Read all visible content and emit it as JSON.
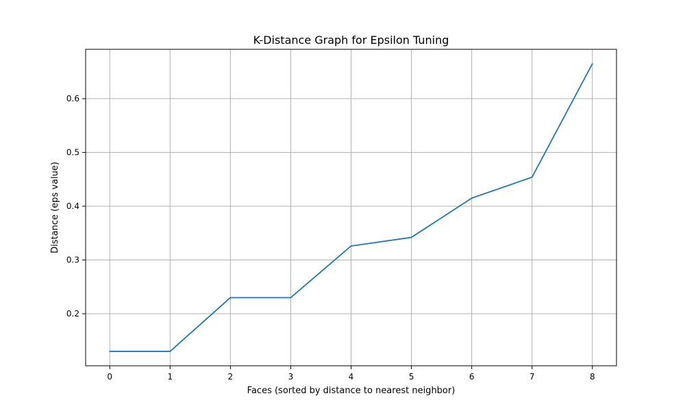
{
  "chart_data": {
    "type": "line",
    "title": "K-Distance Graph for Epsilon Tuning",
    "xlabel": "Faces (sorted by distance to nearest neighbor)",
    "ylabel": "Distance (eps value)",
    "x": [
      0,
      1,
      2,
      3,
      4,
      5,
      6,
      7,
      8
    ],
    "series": [
      {
        "values": [
          0.13,
          0.13,
          0.23,
          0.23,
          0.326,
          0.342,
          0.415,
          0.454,
          0.665
        ],
        "color": "#1f77b4"
      }
    ],
    "xticks": [
      "0",
      "1",
      "2",
      "3",
      "4",
      "5",
      "6",
      "7",
      "8"
    ],
    "yticks": [
      "0.2",
      "0.3",
      "0.4",
      "0.5",
      "0.6"
    ],
    "xlim": [
      -0.4,
      8.4
    ],
    "ylim": [
      0.1032,
      0.6918
    ],
    "grid": true,
    "grid_color": "#b0b0b0"
  }
}
